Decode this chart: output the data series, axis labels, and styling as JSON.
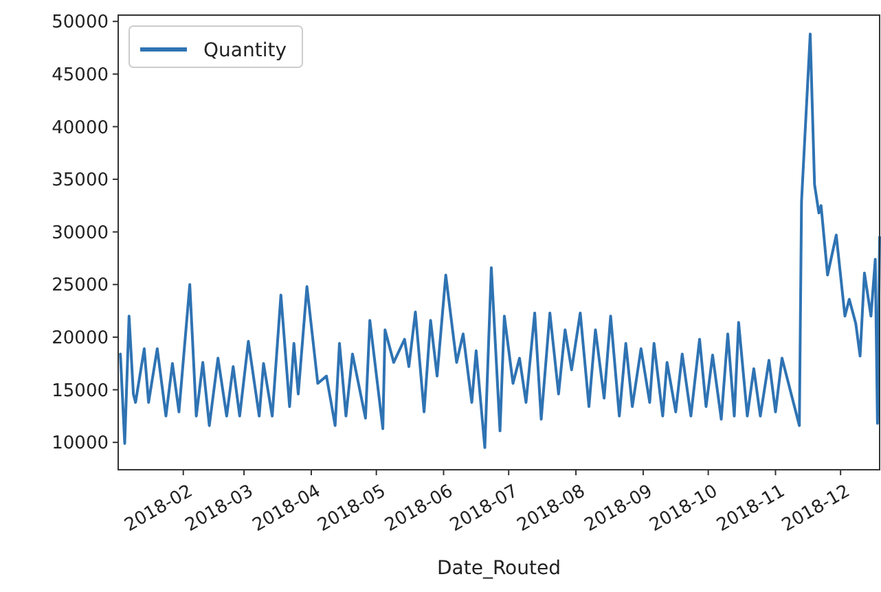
{
  "chart_data": {
    "type": "line",
    "xlabel": "Date_Routed",
    "legend": "top left",
    "grid": false,
    "xlim": [
      "2018-01-02",
      "2018-12-19"
    ],
    "xticks": [
      {
        "value": "2018-02-01",
        "label": "2018-02"
      },
      {
        "value": "2018-03-01",
        "label": "2018-03"
      },
      {
        "value": "2018-04-01",
        "label": "2018-04"
      },
      {
        "value": "2018-05-01",
        "label": "2018-05"
      },
      {
        "value": "2018-06-01",
        "label": "2018-06"
      },
      {
        "value": "2018-07-01",
        "label": "2018-07"
      },
      {
        "value": "2018-08-01",
        "label": "2018-08"
      },
      {
        "value": "2018-09-01",
        "label": "2018-09"
      },
      {
        "value": "2018-10-01",
        "label": "2018-10"
      },
      {
        "value": "2018-11-01",
        "label": "2018-11"
      },
      {
        "value": "2018-12-01",
        "label": "2018-12"
      }
    ],
    "ylim": [
      7400,
      50600
    ],
    "yticks": [
      10000,
      15000,
      20000,
      25000,
      30000,
      35000,
      40000,
      45000,
      50000
    ],
    "x": [
      "2018-01-03",
      "2018-01-05",
      "2018-01-07",
      "2018-01-09",
      "2018-01-10",
      "2018-01-14",
      "2018-01-16",
      "2018-01-20",
      "2018-01-24",
      "2018-01-27",
      "2018-01-30",
      "2018-02-04",
      "2018-02-07",
      "2018-02-10",
      "2018-02-13",
      "2018-02-17",
      "2018-02-21",
      "2018-02-24",
      "2018-02-27",
      "2018-03-03",
      "2018-03-08",
      "2018-03-10",
      "2018-03-14",
      "2018-03-18",
      "2018-03-22",
      "2018-03-24",
      "2018-03-26",
      "2018-03-30",
      "2018-04-04",
      "2018-04-08",
      "2018-04-12",
      "2018-04-14",
      "2018-04-17",
      "2018-04-20",
      "2018-04-26",
      "2018-04-28",
      "2018-05-04",
      "2018-05-05",
      "2018-05-09",
      "2018-05-14",
      "2018-05-16",
      "2018-05-19",
      "2018-05-23",
      "2018-05-26",
      "2018-05-29",
      "2018-06-02",
      "2018-06-07",
      "2018-06-10",
      "2018-06-14",
      "2018-06-16",
      "2018-06-20",
      "2018-06-23",
      "2018-06-27",
      "2018-06-29",
      "2018-07-03",
      "2018-07-06",
      "2018-07-09",
      "2018-07-13",
      "2018-07-16",
      "2018-07-20",
      "2018-07-24",
      "2018-07-27",
      "2018-07-30",
      "2018-08-03",
      "2018-08-07",
      "2018-08-10",
      "2018-08-14",
      "2018-08-17",
      "2018-08-21",
      "2018-08-24",
      "2018-08-27",
      "2018-08-31",
      "2018-09-04",
      "2018-09-06",
      "2018-09-10",
      "2018-09-12",
      "2018-09-16",
      "2018-09-19",
      "2018-09-23",
      "2018-09-27",
      "2018-09-30",
      "2018-10-03",
      "2018-10-07",
      "2018-10-10",
      "2018-10-13",
      "2018-10-15",
      "2018-10-19",
      "2018-10-22",
      "2018-10-25",
      "2018-10-29",
      "2018-11-01",
      "2018-11-04",
      "2018-11-12",
      "2018-11-13",
      "2018-11-17",
      "2018-11-19",
      "2018-11-21",
      "2018-11-22",
      "2018-11-25",
      "2018-11-29",
      "2018-12-03",
      "2018-12-05",
      "2018-12-08",
      "2018-12-10",
      "2018-12-12",
      "2018-12-15",
      "2018-12-17",
      "2018-12-18",
      "2018-12-19"
    ],
    "series": [
      {
        "name": "Quantity",
        "color": "#2f73b3",
        "values": [
          18400,
          9900,
          22000,
          14600,
          13800,
          18900,
          13800,
          18900,
          12500,
          17500,
          12900,
          25000,
          12500,
          17600,
          11600,
          18000,
          12500,
          17200,
          12500,
          19600,
          12500,
          17500,
          12500,
          24000,
          13400,
          19400,
          14600,
          24800,
          15600,
          16300,
          11600,
          19400,
          12500,
          18400,
          12300,
          21600,
          11300,
          20700,
          17600,
          19800,
          17200,
          22400,
          12900,
          21600,
          16300,
          25900,
          17600,
          20300,
          13800,
          18700,
          9500,
          26600,
          11100,
          22000,
          15600,
          18000,
          13800,
          22300,
          12200,
          22300,
          14600,
          20700,
          16900,
          22300,
          13400,
          20700,
          14200,
          22000,
          12500,
          19400,
          13400,
          18900,
          13800,
          19400,
          12500,
          17600,
          12900,
          18400,
          12500,
          19800,
          13400,
          18300,
          12200,
          20300,
          12500,
          21400,
          12500,
          17000,
          12500,
          17800,
          12900,
          18000,
          11600,
          32900,
          48800,
          34500,
          31800,
          32500,
          25900,
          29700,
          22000,
          23600,
          21300,
          18200,
          26100,
          22000,
          27400,
          11800,
          29500
        ]
      }
    ]
  }
}
